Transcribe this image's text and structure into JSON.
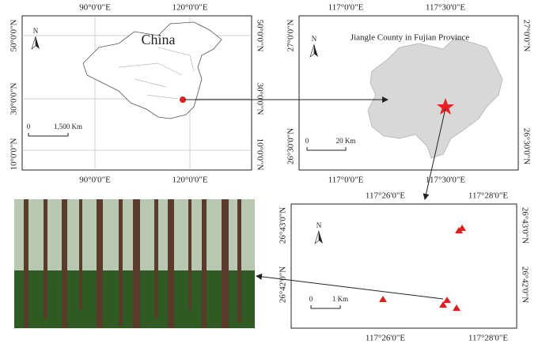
{
  "panels": [
    {
      "title": "China",
      "north": "N",
      "scale": [
        "0",
        "1,500 Km"
      ],
      "lon_labels": [
        "90°0'0\"E",
        "120°0'0\"E"
      ],
      "lat_labels": [
        "50°0'0\"N",
        "30°0'0\"N",
        "10°0'0\"N"
      ]
    },
    {
      "title": "Jiangle County in Fujian Province",
      "north": "N",
      "scale": [
        "0",
        "20 Km"
      ],
      "lon_labels": [
        "117°0'0\"E",
        "117°30'0\"E"
      ],
      "lat_labels": [
        "27°0'0\"N",
        "26°30'0\"N"
      ]
    },
    {
      "north": "N",
      "scale": [
        "0",
        "1 Km"
      ],
      "lon_labels": [
        "117°26'0\"E",
        "117°28'0\"E"
      ],
      "lat_labels": [
        "26°43'0\"N",
        "26°42'0\"N"
      ]
    }
  ]
}
